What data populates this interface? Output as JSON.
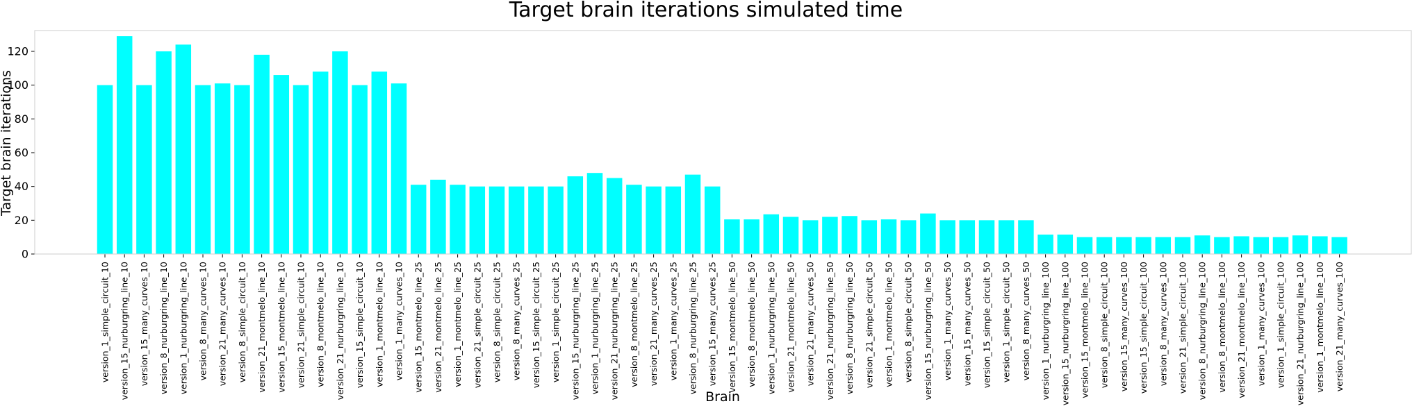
{
  "chart_data": {
    "type": "bar",
    "title": "Target brain iterations simulated time",
    "xlabel": "Brain",
    "ylabel": "Target brain iterations",
    "ylim": [
      0,
      135
    ],
    "yticks": [
      0,
      20,
      40,
      60,
      80,
      100,
      120
    ],
    "grid": false,
    "bar_color": "#00ffff",
    "categories": [
      "version_1_simple_circuit_10",
      "version_15_nurburgring_line_10",
      "version_15_many_curves_10",
      "version_8_nurburgring_line_10",
      "version_1_nurburgring_line_10",
      "version_8_many_curves_10",
      "version_21_many_curves_10",
      "version_8_simple_circuit_10",
      "version_21_montmelo_line_10",
      "version_15_montmelo_line_10",
      "version_21_simple_circuit_10",
      "version_8_montmelo_line_10",
      "version_21_nurburgring_line_10",
      "version_15_simple_circuit_10",
      "version_1_montmelo_line_10",
      "version_1_many_curves_10",
      "version_15_montmelo_line_25",
      "version_21_montmelo_line_25",
      "version_1_montmelo_line_25",
      "version_21_simple_circuit_25",
      "version_8_simple_circuit_25",
      "version_8_many_curves_25",
      "version_15_simple_circuit_25",
      "version_1_simple_circuit_25",
      "version_15_nurburgring_line_25",
      "version_1_nurburgring_line_25",
      "version_21_nurburgring_line_25",
      "version_8_montmelo_line_25",
      "version_21_many_curves_25",
      "version_1_many_curves_25",
      "version_8_nurburgring_line_25",
      "version_15_many_curves_25",
      "version_15_montmelo_line_50",
      "version_8_montmelo_line_50",
      "version_1_nurburgring_line_50",
      "version_21_montmelo_line_50",
      "version_21_many_curves_50",
      "version_21_nurburgring_line_50",
      "version_8_nurburgring_line_50",
      "version_21_simple_circuit_50",
      "version_1_montmelo_line_50",
      "version_8_simple_circuit_50",
      "version_15_nurburgring_line_50",
      "version_1_many_curves_50",
      "version_15_many_curves_50",
      "version_15_simple_circuit_50",
      "version_1_simple_circuit_50",
      "version_8_many_curves_50",
      "version_1_nurburgring_line_100",
      "version_15_nurburgring_line_100",
      "version_15_montmelo_line_100",
      "version_8_simple_circuit_100",
      "version_15_many_curves_100",
      "version_15_simple_circuit_100",
      "version_8_many_curves_100",
      "version_21_simple_circuit_100",
      "version_8_nurburgring_line_100",
      "version_8_montmelo_line_100",
      "version_21_montmelo_line_100",
      "version_1_many_curves_100",
      "version_1_simple_circuit_100",
      "version_21_nurburgring_line_100",
      "version_1_montmelo_line_100",
      "version_21_many_curves_100"
    ],
    "values": [
      100,
      129,
      100,
      120,
      124,
      100,
      101,
      100,
      118,
      106,
      100,
      108,
      120,
      100,
      108,
      101,
      41,
      44,
      41,
      40,
      40,
      40,
      40,
      40,
      46,
      48,
      45,
      41,
      40,
      40,
      47,
      40,
      20.5,
      20.5,
      23.5,
      22,
      20,
      22,
      22.5,
      20,
      20.5,
      20,
      24,
      20,
      20,
      20,
      20,
      20,
      11.5,
      11.5,
      10,
      10,
      10,
      10,
      10,
      10,
      11,
      10,
      10.5,
      10,
      10,
      11,
      10.5,
      10
    ]
  }
}
